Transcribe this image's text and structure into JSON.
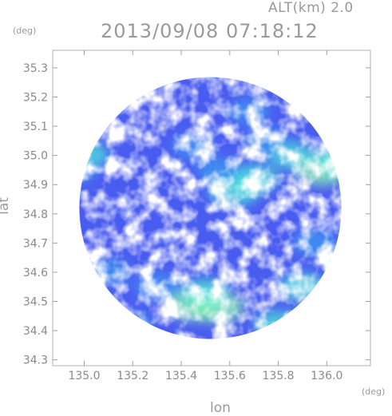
{
  "header": {
    "altitude_label": "ALT(km) 2.0",
    "timestamp": "2013/09/08 07:18:12"
  },
  "chart_data": {
    "type": "heatmap",
    "title": "2013/09/08 07:18:12",
    "subtitle": "ALT(km) 2.0",
    "xlabel": "lon",
    "ylabel": "lat",
    "x_unit": "(deg)",
    "y_unit": "(deg)",
    "xlim": [
      134.87,
      136.18
    ],
    "ylim": [
      34.28,
      35.36
    ],
    "x_ticks": [
      135.0,
      135.2,
      135.4,
      135.6,
      135.8,
      136.0
    ],
    "x_tick_labels": [
      "135.0",
      "135.2",
      "135.4",
      "135.6",
      "135.8",
      "136.0"
    ],
    "y_ticks": [
      34.3,
      34.4,
      34.5,
      34.6,
      34.7,
      34.8,
      34.9,
      35.0,
      35.1,
      35.2,
      35.3
    ],
    "y_tick_labels": [
      "34.3",
      "34.4",
      "34.5",
      "34.6",
      "34.7",
      "34.8",
      "34.9",
      "35.0",
      "35.1",
      "35.2",
      "35.3"
    ],
    "radar_center": [
      135.52,
      34.82
    ],
    "radar_radius_deg": 0.54,
    "colors": {
      "low": "#4a5cf0",
      "mid": "#3f9af2",
      "high": "#4fe8d8",
      "peak": "#8ef5b0"
    },
    "echo_cells": [
      {
        "lon": 135.45,
        "lat": 34.49,
        "intensity": 0.95
      },
      {
        "lon": 135.55,
        "lat": 34.48,
        "intensity": 0.9
      },
      {
        "lon": 135.5,
        "lat": 34.53,
        "intensity": 0.7
      },
      {
        "lon": 135.62,
        "lat": 34.88,
        "intensity": 0.85
      },
      {
        "lon": 135.7,
        "lat": 34.92,
        "intensity": 0.75
      },
      {
        "lon": 135.98,
        "lat": 34.95,
        "intensity": 0.9
      },
      {
        "lon": 136.05,
        "lat": 34.98,
        "intensity": 0.8
      },
      {
        "lon": 135.0,
        "lat": 35.0,
        "intensity": 0.75
      },
      {
        "lon": 134.95,
        "lat": 34.95,
        "intensity": 0.65
      },
      {
        "lon": 135.85,
        "lat": 35.0,
        "intensity": 0.7
      },
      {
        "lon": 135.75,
        "lat": 35.05,
        "intensity": 0.6
      },
      {
        "lon": 135.3,
        "lat": 34.55,
        "intensity": 0.65
      },
      {
        "lon": 135.1,
        "lat": 34.6,
        "intensity": 0.6
      },
      {
        "lon": 135.9,
        "lat": 34.55,
        "intensity": 0.7
      },
      {
        "lon": 135.95,
        "lat": 34.7,
        "intensity": 0.65
      },
      {
        "lon": 135.8,
        "lat": 34.42,
        "intensity": 0.7
      },
      {
        "lon": 135.45,
        "lat": 35.03,
        "intensity": 0.55
      },
      {
        "lon": 135.55,
        "lat": 34.95,
        "intensity": 0.6
      },
      {
        "lon": 135.68,
        "lat": 35.15,
        "intensity": 0.55
      },
      {
        "lon": 135.2,
        "lat": 34.42,
        "intensity": 0.5
      }
    ]
  }
}
